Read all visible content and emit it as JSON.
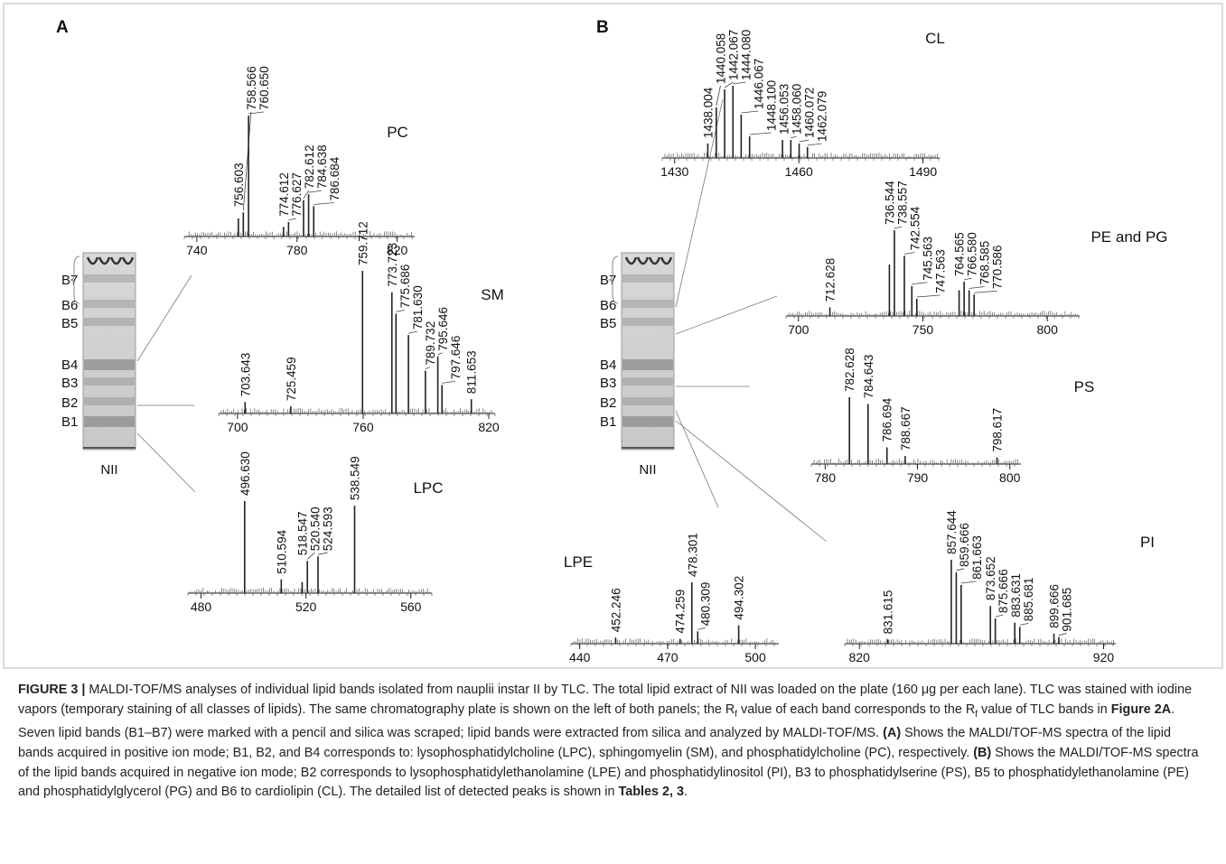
{
  "panels": [
    {
      "letter": "A",
      "plate": {
        "bands": [
          {
            "label": "B7",
            "color": "#888888"
          },
          {
            "label": "B6",
            "color": "#888888"
          },
          {
            "label": "B5",
            "color": "#888888"
          },
          {
            "label": "B4",
            "color": "#111111"
          },
          {
            "label": "B3",
            "color": "#888888"
          },
          {
            "label": "B2",
            "color": "#111111"
          },
          {
            "label": "B1",
            "color": "#111111"
          }
        ],
        "lane_label": "NII"
      },
      "spectra": [
        {
          "title": "PC",
          "xlim": [
            735,
            827
          ],
          "xticks": [
            740,
            780,
            820
          ],
          "peaks": [
            {
              "mz": "756.603",
              "intensity": 15
            },
            {
              "mz": "758.566",
              "intensity": 20
            },
            {
              "mz": "760.650",
              "intensity": 100
            },
            {
              "mz": "774.612",
              "intensity": 8
            },
            {
              "mz": "776.627",
              "intensity": 12
            },
            {
              "mz": "782.612",
              "intensity": 30
            },
            {
              "mz": "784.638",
              "intensity": 35
            },
            {
              "mz": "786.684",
              "intensity": 25
            }
          ]
        },
        {
          "title": "SM",
          "xlim": [
            691,
            823
          ],
          "xticks": [
            700,
            760,
            820
          ],
          "peaks": [
            {
              "mz": "703.643",
              "intensity": 8
            },
            {
              "mz": "725.459",
              "intensity": 5
            },
            {
              "mz": "759.712",
              "intensity": 100
            },
            {
              "mz": "773.723",
              "intensity": 85
            },
            {
              "mz": "775.686",
              "intensity": 70
            },
            {
              "mz": "781.630",
              "intensity": 55
            },
            {
              "mz": "789.732",
              "intensity": 30
            },
            {
              "mz": "795.646",
              "intensity": 40
            },
            {
              "mz": "797.646",
              "intensity": 20
            },
            {
              "mz": "811.653",
              "intensity": 10
            }
          ]
        },
        {
          "title": "LPC",
          "xlim": [
            475,
            568
          ],
          "xticks": [
            480,
            520,
            560
          ],
          "peaks": [
            {
              "mz": "496.630",
              "intensity": 100
            },
            {
              "mz": "510.594",
              "intensity": 15
            },
            {
              "mz": "518.547",
              "intensity": 12
            },
            {
              "mz": "520.540",
              "intensity": 35
            },
            {
              "mz": "524.593",
              "intensity": 40
            },
            {
              "mz": "538.549",
              "intensity": 95
            }
          ]
        }
      ]
    },
    {
      "letter": "B",
      "plate": {
        "bands": [
          {
            "label": "B7",
            "color": "#888888"
          },
          {
            "label": "B6",
            "color": "#111111"
          },
          {
            "label": "B5",
            "color": "#111111"
          },
          {
            "label": "B4",
            "color": "#888888"
          },
          {
            "label": "B3",
            "color": "#111111"
          },
          {
            "label": "B2",
            "color": "#111111"
          },
          {
            "label": "B1",
            "color": "#888888"
          }
        ],
        "lane_label": "NII"
      },
      "spectra": [
        {
          "title": "CL",
          "xlim": [
            1427,
            1494
          ],
          "xticks": [
            1430,
            1460,
            1490
          ],
          "peaks": [
            {
              "mz": "1438.004",
              "intensity": 20
            },
            {
              "mz": "1440.058",
              "intensity": 70
            },
            {
              "mz": "1442.067",
              "intensity": 95
            },
            {
              "mz": "1444.080",
              "intensity": 100
            },
            {
              "mz": "1446.067",
              "intensity": 60
            },
            {
              "mz": "1448.100",
              "intensity": 30
            },
            {
              "mz": "1456.053",
              "intensity": 25
            },
            {
              "mz": "1458.060",
              "intensity": 25
            },
            {
              "mz": "1460.072",
              "intensity": 20
            },
            {
              "mz": "1462.079",
              "intensity": 15
            }
          ]
        },
        {
          "title": "PE and PG",
          "xlim": [
            695,
            813
          ],
          "xticks": [
            700,
            750,
            800
          ],
          "peaks": [
            {
              "mz": "712.628",
              "intensity": 10
            },
            {
              "mz": "736.544",
              "intensity": 60
            },
            {
              "mz": "738.557",
              "intensity": 100
            },
            {
              "mz": "742.554",
              "intensity": 70
            },
            {
              "mz": "745.563",
              "intensity": 35
            },
            {
              "mz": "747.563",
              "intensity": 20
            },
            {
              "mz": "764.565",
              "intensity": 30
            },
            {
              "mz": "766.580",
              "intensity": 40
            },
            {
              "mz": "768.585",
              "intensity": 30
            },
            {
              "mz": "770.586",
              "intensity": 25
            }
          ]
        },
        {
          "title": "PS",
          "xlim": [
            778.5,
            801.2
          ],
          "xticks": [
            780,
            790,
            800
          ],
          "peaks": [
            {
              "mz": "782.628",
              "intensity": 100
            },
            {
              "mz": "784.643",
              "intensity": 90
            },
            {
              "mz": "786.694",
              "intensity": 25
            },
            {
              "mz": "788.667",
              "intensity": 12
            },
            {
              "mz": "798.617",
              "intensity": 10
            }
          ]
        },
        {
          "title": "LPE",
          "xlim": [
            437,
            508
          ],
          "xticks": [
            440,
            470,
            500
          ],
          "peaks": [
            {
              "mz": "452.246",
              "intensity": 10
            },
            {
              "mz": "474.259",
              "intensity": 8
            },
            {
              "mz": "478.301",
              "intensity": 100
            },
            {
              "mz": "480.309",
              "intensity": 20
            },
            {
              "mz": "494.302",
              "intensity": 30
            }
          ]
        },
        {
          "title": "PI",
          "xlim": [
            814,
            925
          ],
          "xticks": [
            820,
            920
          ],
          "peaks": [
            {
              "mz": "831.615",
              "intensity": 5
            },
            {
              "mz": "857.644",
              "intensity": 100
            },
            {
              "mz": "859.666",
              "intensity": 85
            },
            {
              "mz": "861.663",
              "intensity": 70
            },
            {
              "mz": "873.652",
              "intensity": 45
            },
            {
              "mz": "875.666",
              "intensity": 30
            },
            {
              "mz": "883.631",
              "intensity": 25
            },
            {
              "mz": "885.681",
              "intensity": 20
            },
            {
              "mz": "899.666",
              "intensity": 12
            },
            {
              "mz": "901.685",
              "intensity": 8
            }
          ]
        }
      ]
    }
  ],
  "caption": {
    "parts": [
      "FIGURE 3 |",
      " MALDI-TOF/MS analyses of individual lipid bands isolated from nauplii instar II by TLC. The total lipid extract of NII was loaded on the plate (160 μg per each lane). TLC was stained with iodine vapors (temporary staining of all classes of lipids). The same chromatography plate is shown on the left of both panels; the R",
      "f",
      " value of each band corresponds to the R",
      "f",
      " value of TLC bands in ",
      "Figure 2A",
      ". Seven lipid bands (B1–B7) were marked with a pencil and silica was scraped; lipid bands were extracted from silica and analyzed by MALDI-TOF/MS. ",
      "(A)",
      " Shows the MALDI/TOF-MS spectra of the lipid bands acquired in positive ion mode; B1, B2, and B4 corresponds to: lysophosphatidylcholine (LPC), sphingomyelin (SM), and phosphatidylcholine (PC), respectively. ",
      "(B)",
      " Shows the MALDI/TOF-MS spectra of the lipid bands acquired in negative ion mode; B2 corresponds to lysophosphatidylethanolamine (LPE) and phosphatidylinositol (PI), B3 to phosphatidylserine (PS), B5 to phosphatidylethanolamine (PE) and phosphatidylglycerol (PG) and B6 to cardiolipin (CL). The detailed list of detected peaks is shown in ",
      "Tables 2, 3",
      "."
    ]
  }
}
